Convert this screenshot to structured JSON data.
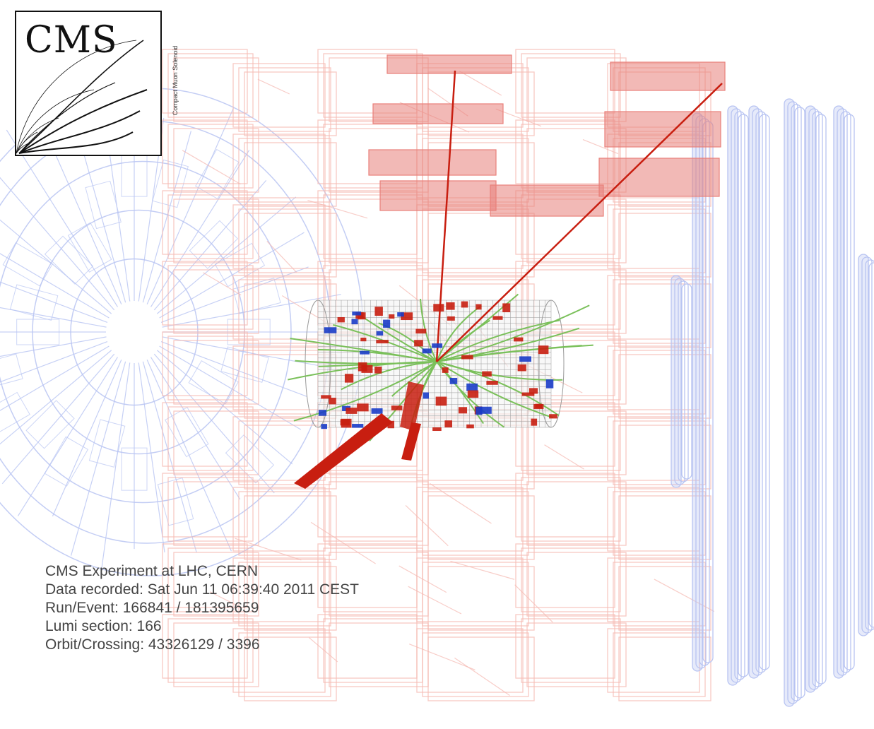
{
  "logo": {
    "title": "CMS",
    "subtitle": "Compact Muon Solenoid"
  },
  "event_info": {
    "experiment": "CMS Experiment at LHC, CERN",
    "date": "Data recorded: Sat Jun 11 06:39:40 2011 CEST",
    "run_event": "Run/Event: 166841 / 181395659",
    "lumi": "Lumi section: 166",
    "orbit": "Orbit/Crossing: 43326129 / 3396"
  },
  "colors": {
    "endcap_wireframe": "#b8c4f2",
    "muon_chambers": "#f5b8b0",
    "muon_hits": "#e8807a",
    "tracker_grid": "#9a9a9a",
    "tracks": "#7ac05a",
    "ecal_deposits": "#c81e10",
    "hcal_deposits": "#1a3cc8",
    "jets": "#c81e10"
  }
}
